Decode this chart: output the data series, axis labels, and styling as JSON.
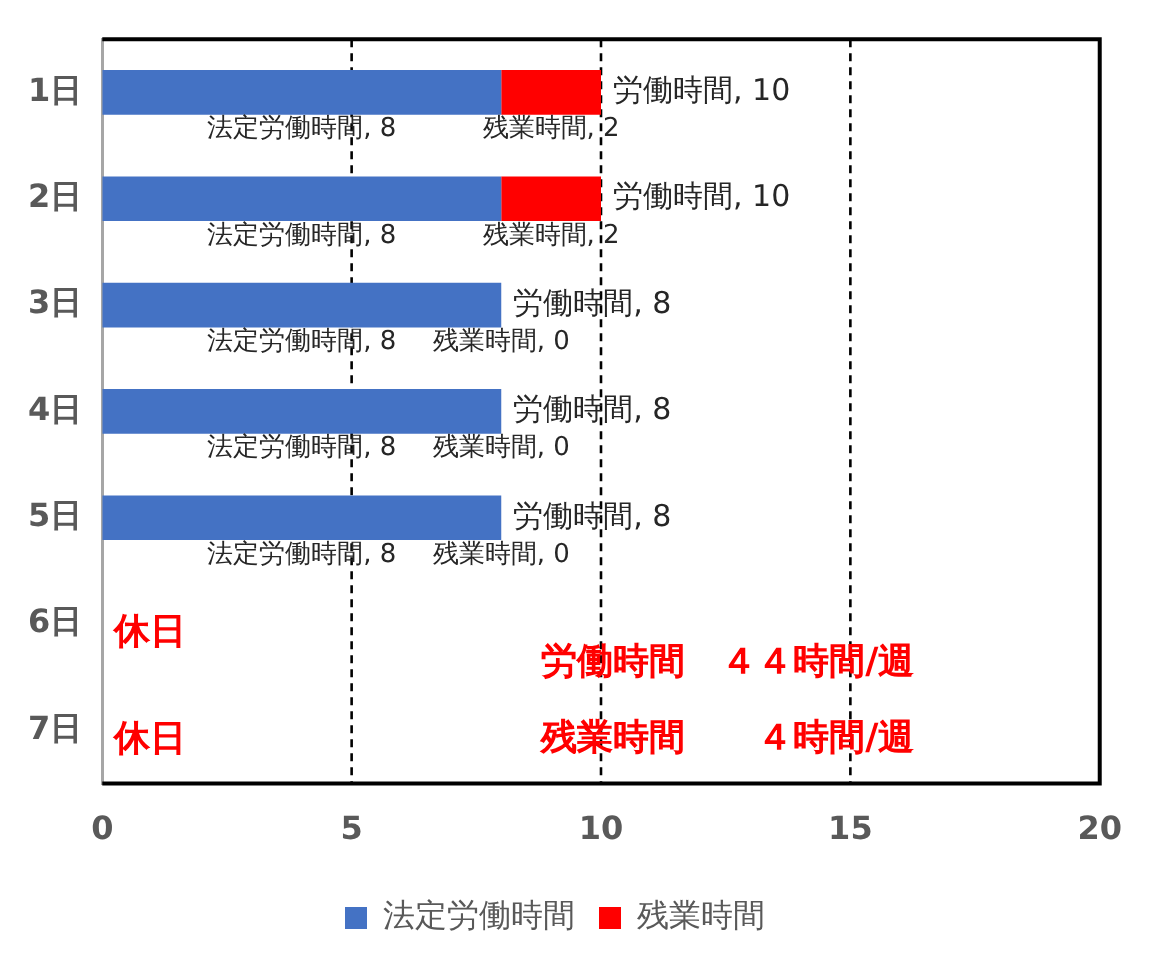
{
  "chart_data": {
    "type": "bar",
    "orientation": "horizontal",
    "stacked": true,
    "categories": [
      "1日",
      "2日",
      "3日",
      "4日",
      "5日",
      "6日",
      "7日"
    ],
    "series": [
      {
        "name": "法定労働時間",
        "color": "#4472c4",
        "values": [
          8,
          8,
          8,
          8,
          8,
          null,
          null
        ],
        "value_labels": [
          "法定労働時間, 8",
          "法定労働時間, 8",
          "法定労働時間, 8",
          "法定労働時間, 8",
          "法定労働時間, 8",
          null,
          null
        ]
      },
      {
        "name": "残業時間",
        "color": "#ff0000",
        "values": [
          2,
          2,
          0,
          0,
          0,
          null,
          null
        ],
        "value_labels": [
          "残業時間, 2",
          "残業時間, 2",
          "残業時間, 0",
          "残業時間, 0",
          "残業時間, 0",
          null,
          null
        ]
      }
    ],
    "totals": [
      "労働時間, 10",
      "労働時間, 10",
      "労働時間, 8",
      "労働時間, 8",
      "労働時間, 8",
      null,
      null
    ],
    "xlim": [
      0,
      20
    ],
    "xticks": [
      0,
      5,
      10,
      15,
      20
    ],
    "grid": "x",
    "legend": "bottom",
    "annotations": [
      "休日",
      "休日",
      "労働時間　４４時間/週",
      "残業時間　　４時間/週"
    ]
  }
}
